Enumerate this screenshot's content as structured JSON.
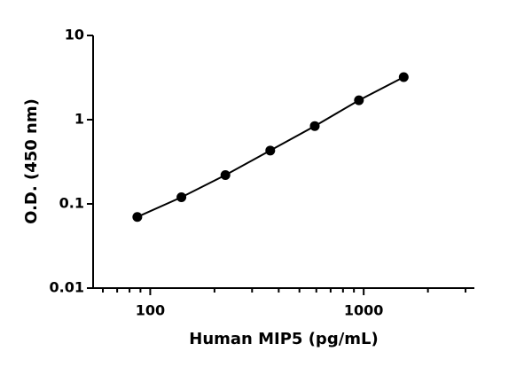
{
  "chart_data": {
    "type": "scatter",
    "x_label": "Human MIP5 (pg/mL)",
    "y_label": "O.D. (450 nm)",
    "x_scale": "log",
    "y_scale": "log",
    "xlim": [
      54,
      3300
    ],
    "ylim": [
      0.01,
      10
    ],
    "xticks": [
      100,
      1000
    ],
    "xminorticks": [
      60,
      70,
      80,
      90,
      200,
      300,
      400,
      500,
      600,
      700,
      800,
      900,
      2000,
      3000
    ],
    "yticks": [
      0.01,
      0.1,
      1,
      10
    ],
    "color": "#000000",
    "x": [
      87,
      140,
      225,
      365,
      590,
      950,
      1540
    ],
    "values": [
      0.07,
      0.12,
      0.22,
      0.43,
      0.84,
      1.7,
      3.2
    ]
  }
}
